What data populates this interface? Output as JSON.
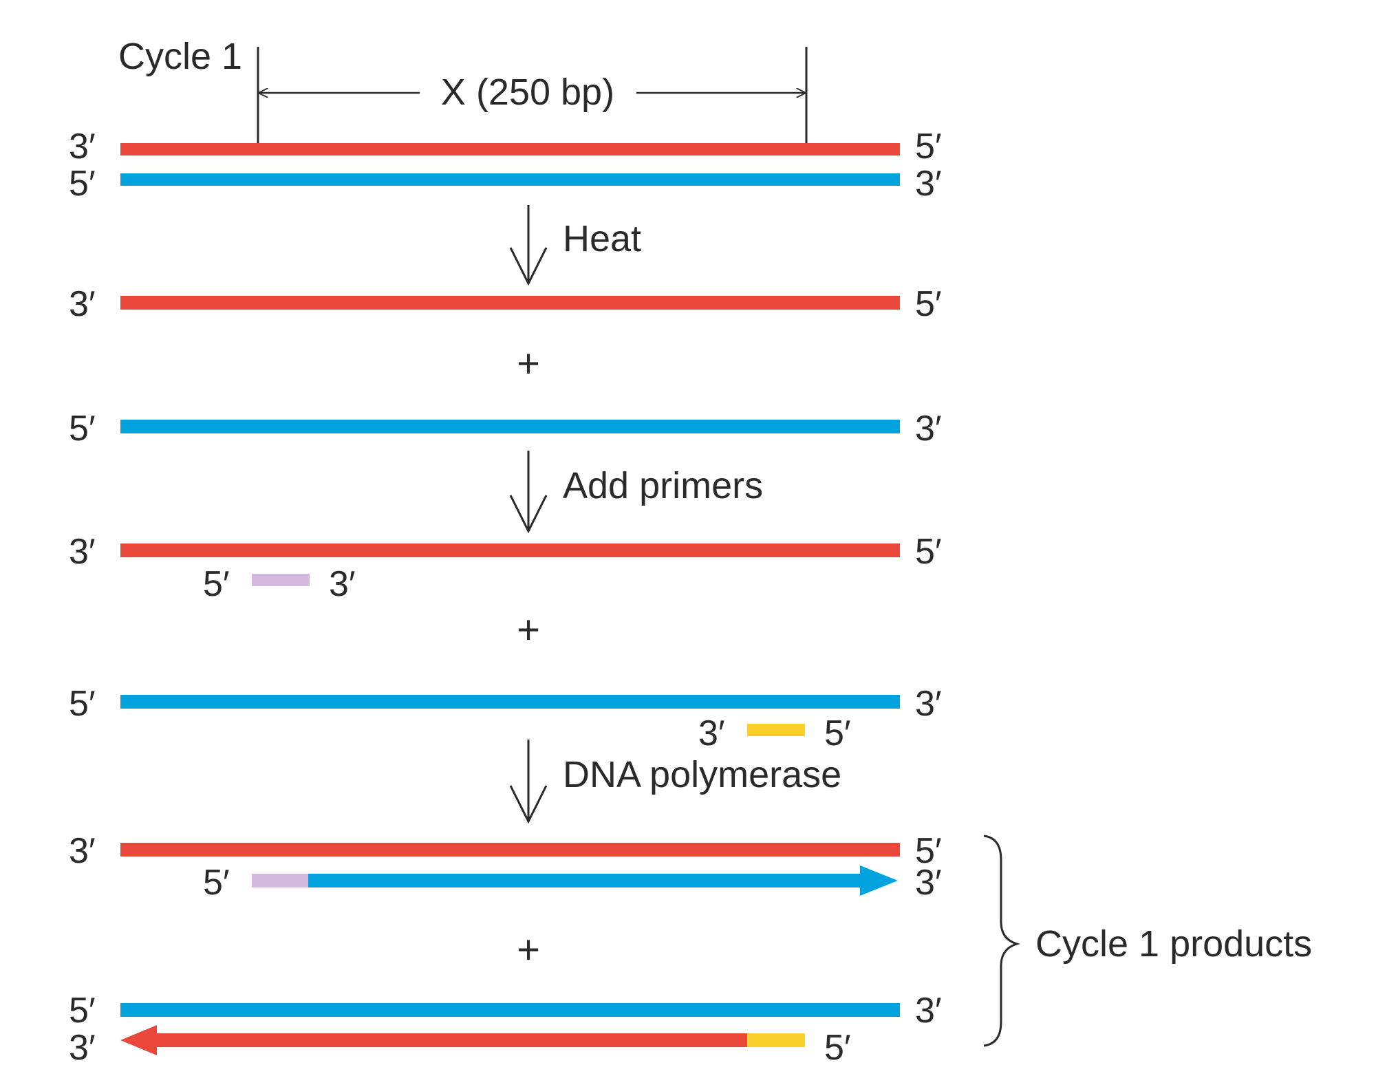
{
  "title": "Cycle 1",
  "region_label": "X (250 bp)",
  "steps": {
    "heat": "Heat",
    "add_primers": "Add primers",
    "dna_polymerase": "DNA polymerase"
  },
  "plus": "+",
  "products_label": "Cycle 1 products",
  "ends": {
    "three": "3′",
    "five": "5′"
  },
  "colors": {
    "red_strand": "#e8473a",
    "blue_strand": "#00a3de",
    "primer_purple": "#d5b8e0",
    "primer_yellow": "#fcd02a",
    "text": "#2a2a2a"
  }
}
